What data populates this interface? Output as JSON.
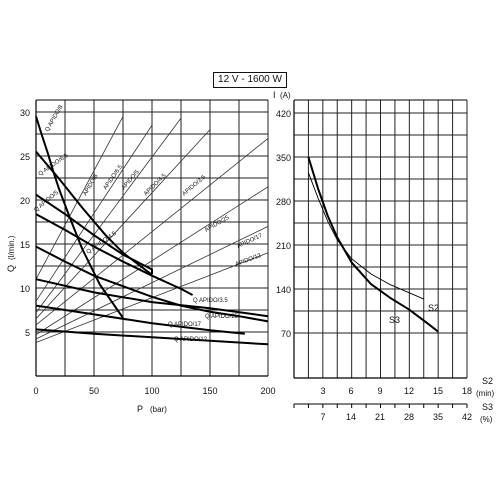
{
  "title": "12 V - 1600 W",
  "chart_data": [
    {
      "type": "line",
      "xlabel": "P",
      "xunit": "(bar)",
      "ylabel": "Q",
      "yunit": "(l/min.)",
      "xlim": [
        0,
        200
      ],
      "ylim": [
        0,
        30
      ],
      "xticks": [
        0,
        50,
        100,
        150,
        200
      ],
      "yticks": [
        5,
        10,
        15,
        20,
        25,
        30
      ],
      "grid": true,
      "flow_series": [
        {
          "name": "Q APIDO/8",
          "points": [
            [
              0,
              29.5
            ],
            [
              5,
              27.4
            ],
            [
              10,
              25.4
            ],
            [
              15,
              23.2
            ],
            [
              20,
              21.2
            ],
            [
              30,
              17.7
            ],
            [
              40,
              14.4
            ],
            [
              55,
              10.4
            ],
            [
              75,
              6.6
            ]
          ]
        },
        {
          "name": "Q APIDO/6.5",
          "points": [
            [
              0,
              25.5
            ],
            [
              20,
              22.4
            ],
            [
              40,
              19.1
            ],
            [
              60,
              16.0
            ],
            [
              75,
              14.0
            ],
            [
              90,
              12.5
            ],
            [
              100,
              11.5
            ]
          ]
        },
        {
          "name": "Q APIDO/5",
          "points": [
            [
              0,
              20.6
            ],
            [
              25,
              18.4
            ],
            [
              50,
              16.0
            ],
            [
              75,
              13.8
            ],
            [
              100,
              12.1
            ],
            [
              100,
              11.6
            ]
          ]
        },
        {
          "name": "Q APIDO/4.5",
          "points": [
            [
              0,
              18.4
            ],
            [
              25,
              16.6
            ],
            [
              50,
              14.7
            ],
            [
              75,
              13.0
            ],
            [
              100,
              11.4
            ],
            [
              125,
              9.9
            ],
            [
              135,
              9.2
            ]
          ]
        },
        {
          "name": "Q APIDO/3.5",
          "points": [
            [
              0,
              14.7
            ],
            [
              25,
              13.0
            ],
            [
              50,
              11.4
            ],
            [
              75,
              10.2
            ],
            [
              100,
              9.0
            ],
            [
              125,
              8.0
            ],
            [
              150,
              7.3
            ],
            [
              175,
              6.8
            ],
            [
              200,
              6.2
            ]
          ]
        },
        {
          "name": "Q APIDO/25",
          "points": [
            [
              0,
              11.0
            ],
            [
              50,
              9.5
            ],
            [
              100,
              8.4
            ],
            [
              150,
              7.7
            ],
            [
              200,
              6.8
            ]
          ]
        },
        {
          "name": "Q APIDO/17",
          "points": [
            [
              0,
              8.0
            ],
            [
              50,
              7.0
            ],
            [
              100,
              6.0
            ],
            [
              150,
              5.2
            ],
            [
              180,
              4.8
            ]
          ]
        },
        {
          "name": "Q APIDO/12",
          "points": [
            [
              0,
              5.3
            ],
            [
              50,
              4.8
            ],
            [
              100,
              4.4
            ],
            [
              150,
              4.0
            ],
            [
              200,
              3.6
            ]
          ]
        }
      ],
      "power_lines": [
        {
          "name": "APIDO/8",
          "points": [
            [
              0,
              11.0
            ],
            [
              75,
              29.5
            ]
          ]
        },
        {
          "name": "APIDO/6.5",
          "points": [
            [
              0,
              8.5
            ],
            [
              100,
              28.5
            ]
          ]
        },
        {
          "name": "APIDO/5",
          "points": [
            [
              0,
              7.2
            ],
            [
              125,
              29.3
            ]
          ]
        },
        {
          "name": "APIDO/4.5",
          "points": [
            [
              0,
              6.5
            ],
            [
              150,
              28.0
            ]
          ]
        },
        {
          "name": "APIDO/3.5",
          "points": [
            [
              0,
              5.8
            ],
            [
              200,
              27.0
            ]
          ]
        },
        {
          "name": "APIDO/25",
          "points": [
            [
              0,
              4.7
            ],
            [
              200,
              21.5
            ]
          ]
        },
        {
          "name": "APIDO/17",
          "points": [
            [
              0,
              4.2
            ],
            [
              200,
              17.0
            ]
          ]
        },
        {
          "name": "APIDO/12",
          "points": [
            [
              0,
              3.8
            ],
            [
              200,
              14.0
            ]
          ]
        }
      ]
    },
    {
      "type": "line",
      "ylabel": "I",
      "yunit": "(A)",
      "ylim": [
        0,
        420
      ],
      "yticks": [
        70,
        140,
        210,
        280,
        350,
        420
      ],
      "x_axes": [
        {
          "name": "S2",
          "unit": "(min)",
          "ticks": [
            3,
            6,
            9,
            12,
            15,
            18
          ]
        },
        {
          "name": "S3",
          "unit": "(%)",
          "ticks": [
            7,
            14,
            21,
            28,
            35,
            42
          ]
        }
      ],
      "xlim": [
        0,
        18
      ],
      "series": [
        {
          "name": "S2",
          "x_axis": "S2 (min)",
          "points": [
            [
              1.5,
              325
            ],
            [
              2.5,
              285
            ],
            [
              3.5,
              248
            ],
            [
              4.5,
              218
            ],
            [
              6,
              188
            ],
            [
              8,
              164
            ],
            [
              10,
              147
            ],
            [
              12,
              134
            ],
            [
              13.5,
              124
            ]
          ]
        },
        {
          "name": "S3",
          "x_axis": "S2 (min)",
          "points": [
            [
              1.5,
              350
            ],
            [
              2.5,
              300
            ],
            [
              3.5,
              257
            ],
            [
              4.5,
              222
            ],
            [
              6,
              182
            ],
            [
              8,
              148
            ],
            [
              10,
              126
            ],
            [
              12,
              107
            ],
            [
              14,
              84
            ],
            [
              15,
              72
            ]
          ]
        }
      ]
    }
  ],
  "labels": {
    "left_yaxis_ticks": [
      "5",
      "10",
      "15",
      "20",
      "25",
      "30"
    ],
    "left_xaxis_ticks": [
      "0",
      "50",
      "100",
      "150",
      "200"
    ],
    "left_xlabel": "P",
    "left_xunit": "(bar)",
    "left_ylabel": "Q",
    "left_yunit": "(l/min.)",
    "right_yaxis_ticks": [
      "70",
      "140",
      "210",
      "280",
      "350",
      "420"
    ],
    "right_ylabel": "I",
    "right_yunit": "(A)",
    "s2_ticks": [
      "3",
      "6",
      "9",
      "12",
      "15",
      "18"
    ],
    "s3_ticks": [
      "7",
      "14",
      "21",
      "28",
      "35",
      "42"
    ],
    "s2_label": "S2",
    "s2_unit": "(min)",
    "s3_label": "S3",
    "s3_unit": "(%)",
    "curve_s2": "S2",
    "curve_s3": "S3"
  }
}
